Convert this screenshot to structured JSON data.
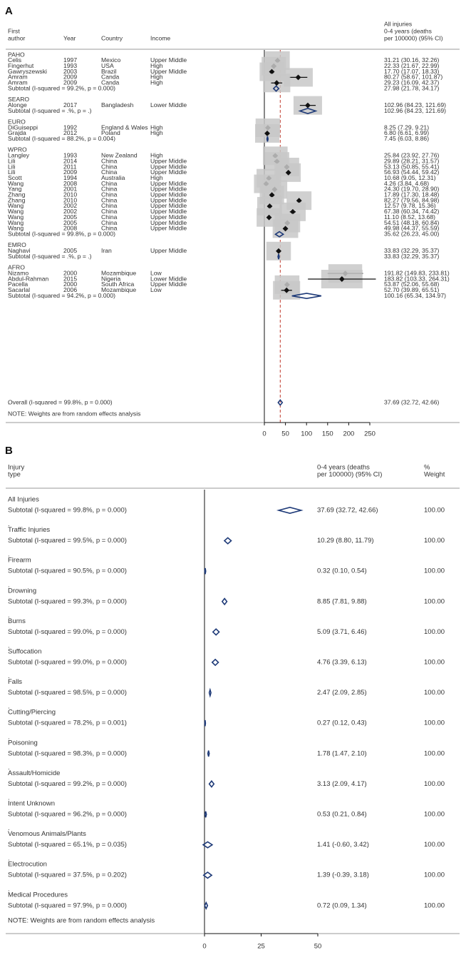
{
  "chart_data": [
    {
      "type": "forest",
      "panel_label": "A",
      "headers": {
        "author": "First\nauthor",
        "year": "Year",
        "country": "Country",
        "income": "Income",
        "estimate": "All injuries\n0-4 years (deaths\nper 100000) (95% CI)"
      },
      "x_ticks": [
        0,
        50,
        100,
        150,
        200,
        250
      ],
      "xlim": [
        0,
        250
      ],
      "null_line": 0,
      "overall_line": 37.69,
      "groups": [
        {
          "name": "PAHO",
          "studies": [
            {
              "author": "Celis",
              "year": "1997",
              "country": "Mexico",
              "income": "Upper Middle",
              "est": 31.21,
              "lo": 30.16,
              "hi": 32.26,
              "label": "31.21 (30.16, 32.26)"
            },
            {
              "author": "Fingerhut",
              "year": "1993",
              "country": "USA",
              "income": "High",
              "est": 22.33,
              "lo": 21.67,
              "hi": 22.99,
              "label": "22.33 (21.67, 22.99)"
            },
            {
              "author": "Gawryszewski",
              "year": "2003",
              "country": "Brazil",
              "income": "Upper Middle",
              "est": 17.7,
              "lo": 17.07,
              "hi": 18.33,
              "label": "17.70 (17.07, 18.33)"
            },
            {
              "author": "Amram",
              "year": "2009",
              "country": "Canda",
              "income": "High",
              "est": 80.27,
              "lo": 58.67,
              "hi": 101.87,
              "label": "80.27 (58.67, 101.87)"
            },
            {
              "author": "Amram",
              "year": "2009",
              "country": "Canda",
              "income": "High",
              "est": 29.23,
              "lo": 16.09,
              "hi": 42.37,
              "label": "29.23 (16.09, 42.37)"
            }
          ],
          "subtotal": {
            "text": "Subtotal  (I-squared = 99.2%, p = 0.000)",
            "est": 27.98,
            "lo": 21.78,
            "hi": 34.17,
            "label": "27.98 (21.78, 34.17)"
          }
        },
        {
          "name": "SEARO",
          "studies": [
            {
              "author": "Alonge",
              "year": "2017",
              "country": "Bangladesh",
              "income": "Lower Middle",
              "est": 102.96,
              "lo": 84.23,
              "hi": 121.69,
              "label": "102.96 (84.23, 121.69)"
            }
          ],
          "subtotal": {
            "text": "Subtotal  (I-squared = .%, p = .)",
            "est": 102.96,
            "lo": 84.23,
            "hi": 121.69,
            "label": "102.96 (84.23, 121.69)"
          }
        },
        {
          "name": "EURO",
          "studies": [
            {
              "author": "DiGuiseppi",
              "year": "1992",
              "country": "England & Wales",
              "income": "High",
              "est": 8.25,
              "lo": 7.29,
              "hi": 9.21,
              "label": "8.25 (7.29, 9.21)"
            },
            {
              "author": "Grajda",
              "year": "2012",
              "country": "Poland",
              "income": "High",
              "est": 6.8,
              "lo": 6.61,
              "hi": 6.99,
              "label": "6.80 (6.61, 6.99)"
            }
          ],
          "subtotal": {
            "text": "Subtotal  (I-squared = 88.2%, p = 0.004)",
            "est": 7.45,
            "lo": 6.03,
            "hi": 8.86,
            "label": "7.45 (6.03, 8.86)"
          }
        },
        {
          "name": "WPRO",
          "studies": [
            {
              "author": "Langley",
              "year": "1993",
              "country": "New Zealand",
              "income": "High",
              "est": 25.84,
              "lo": 23.92,
              "hi": 27.76,
              "label": "25.84 (23.92, 27.76)"
            },
            {
              "author": "Lili",
              "year": "2014",
              "country": "China",
              "income": "Upper Middle",
              "est": 29.89,
              "lo": 28.21,
              "hi": 31.57,
              "label": "29.89 (28.21, 31.57)"
            },
            {
              "author": "Lili",
              "year": "2011",
              "country": "China",
              "income": "Upper Middle",
              "est": 53.13,
              "lo": 50.85,
              "hi": 55.41,
              "label": "53.13 (50.85, 55.41)"
            },
            {
              "author": "Lili",
              "year": "2009",
              "country": "China",
              "income": "Upper Middle",
              "est": 56.93,
              "lo": 54.44,
              "hi": 59.42,
              "label": "56.93 (54.44, 59.42)"
            },
            {
              "author": "Scott",
              "year": "1994",
              "country": "Australia",
              "income": "High",
              "est": 10.68,
              "lo": 9.05,
              "hi": 12.31,
              "label": "10.68 (9.05, 12.31)"
            },
            {
              "author": "Wang",
              "year": "2008",
              "country": "China",
              "income": "Upper Middle",
              "est": 4.26,
              "lo": 3.84,
              "hi": 4.68,
              "label": "4.26 (3.84, 4.68)"
            },
            {
              "author": "Yang",
              "year": "2001",
              "country": "China",
              "income": "Upper Middle",
              "est": 24.3,
              "lo": 19.7,
              "hi": 28.9,
              "label": "24.30 (19.70, 28.90)"
            },
            {
              "author": "Zhang",
              "year": "2010",
              "country": "China",
              "income": "Upper Middle",
              "est": 17.89,
              "lo": 17.3,
              "hi": 18.48,
              "label": "17.89 (17.30, 18.48)"
            },
            {
              "author": "Zhang",
              "year": "2010",
              "country": "China",
              "income": "Upper Middle",
              "est": 82.27,
              "lo": 79.56,
              "hi": 84.98,
              "label": "82.27 (79.56, 84.98)"
            },
            {
              "author": "Wang",
              "year": "2002",
              "country": "China",
              "income": "Upper Middle",
              "est": 12.57,
              "lo": 9.78,
              "hi": 15.36,
              "label": "12.57 (9.78, 15.36)"
            },
            {
              "author": "Wang",
              "year": "2002",
              "country": "China",
              "income": "Upper Middle",
              "est": 67.38,
              "lo": 60.34,
              "hi": 74.42,
              "label": "67.38 (60.34, 74.42)"
            },
            {
              "author": "Wang",
              "year": "2005",
              "country": "China",
              "income": "Upper Middle",
              "est": 11.1,
              "lo": 8.52,
              "hi": 13.68,
              "label": "11.10 (8.52, 13.68)"
            },
            {
              "author": "Wang",
              "year": "2005",
              "country": "China",
              "income": "Upper Middle",
              "est": 54.51,
              "lo": 48.18,
              "hi": 60.84,
              "label": "54.51 (48.18, 60.84)"
            },
            {
              "author": "Wang",
              "year": "2008",
              "country": "China",
              "income": "Upper Middle",
              "est": 49.98,
              "lo": 44.37,
              "hi": 55.59,
              "label": "49.98 (44.37, 55.59)"
            }
          ],
          "subtotal": {
            "text": "Subtotal  (I-squared = 99.8%, p = 0.000)",
            "est": 35.62,
            "lo": 26.23,
            "hi": 45.0,
            "label": "35.62 (26.23, 45.00)"
          }
        },
        {
          "name": "EMRO",
          "studies": [
            {
              "author": "Naghavi",
              "year": "2005",
              "country": "Iran",
              "income": "Upper Middle",
              "est": 33.83,
              "lo": 32.29,
              "hi": 35.37,
              "label": "33.83 (32.29, 35.37)"
            }
          ],
          "subtotal": {
            "text": "Subtotal  (I-squared = .%, p = .)",
            "est": 33.83,
            "lo": 32.29,
            "hi": 35.37,
            "label": "33.83 (32.29, 35.37)"
          }
        },
        {
          "name": "AFRO",
          "studies": [
            {
              "author": "Nizamo",
              "year": "2000",
              "country": "Mozambique",
              "income": "Low",
              "est": 191.82,
              "lo": 149.83,
              "hi": 233.81,
              "label": "191.82 (149.83, 233.81)"
            },
            {
              "author": "Abdul-Rahman",
              "year": "2015",
              "country": "Nigeria",
              "income": "Lower Middle",
              "est": 183.82,
              "lo": 103.33,
              "hi": 264.31,
              "label": "183.82 (103.33, 264.31)"
            },
            {
              "author": "Pacella",
              "year": "2000",
              "country": "South Africa",
              "income": "Upper Middle",
              "est": 53.87,
              "lo": 52.06,
              "hi": 55.68,
              "label": "53.87 (52.06, 55.68)"
            },
            {
              "author": "Sacarlal",
              "year": "2006",
              "country": "Mozambique",
              "income": "Low",
              "est": 52.7,
              "lo": 39.89,
              "hi": 65.51,
              "label": "52.70 (39.89, 65.51)"
            }
          ],
          "subtotal": {
            "text": "Subtotal  (I-squared = 94.2%, p = 0.000)",
            "est": 100.16,
            "lo": 65.34,
            "hi": 134.97,
            "label": "100.16 (65.34, 134.97)"
          }
        }
      ],
      "overall": {
        "text": "Overall  (I-squared = 99.8%, p = 0.000)",
        "est": 37.69,
        "lo": 32.72,
        "hi": 42.66,
        "label": "37.69 (32.72, 42.66)"
      },
      "note": "NOTE: Weights are from random effects analysis"
    },
    {
      "type": "forest",
      "panel_label": "B",
      "headers": {
        "type": "Injury\ntype",
        "estimate": "0-4 years (deaths\nper 100000) (95% CI)",
        "weight": "%\nWeight"
      },
      "x_ticks": [
        0,
        25,
        50
      ],
      "xlim": [
        0,
        50
      ],
      "null_line": 0,
      "rows": [
        {
          "type": "All Injuries",
          "subtotal": "Subtotal  (I-squared = 99.8%, p = 0.000)",
          "est": 37.69,
          "lo": 32.72,
          "hi": 42.66,
          "label": "37.69 (32.72, 42.66)",
          "weight": "100.00"
        },
        {
          "type": "Traffic Injuries",
          "subtotal": "Subtotal  (I-squared = 99.5%, p = 0.000)",
          "est": 10.29,
          "lo": 8.8,
          "hi": 11.79,
          "label": "10.29 (8.80, 11.79)",
          "weight": "100.00"
        },
        {
          "type": "Firearm",
          "subtotal": "Subtotal  (I-squared = 90.5%, p = 0.000)",
          "est": 0.32,
          "lo": 0.1,
          "hi": 0.54,
          "label": "0.32 (0.10, 0.54)",
          "weight": "100.00"
        },
        {
          "type": "Drowning",
          "subtotal": "Subtotal  (I-squared = 99.3%, p = 0.000)",
          "est": 8.85,
          "lo": 7.81,
          "hi": 9.88,
          "label": "8.85 (7.81, 9.88)",
          "weight": "100.00"
        },
        {
          "type": "Burns",
          "subtotal": "Subtotal  (I-squared = 99.0%, p = 0.000)",
          "est": 5.09,
          "lo": 3.71,
          "hi": 6.46,
          "label": "5.09 (3.71, 6.46)",
          "weight": "100.00"
        },
        {
          "type": "Suffocation",
          "subtotal": "Subtotal  (I-squared = 99.0%, p = 0.000)",
          "est": 4.76,
          "lo": 3.39,
          "hi": 6.13,
          "label": "4.76 (3.39, 6.13)",
          "weight": "100.00"
        },
        {
          "type": "Falls",
          "subtotal": "Subtotal  (I-squared = 98.5%, p = 0.000)",
          "est": 2.47,
          "lo": 2.09,
          "hi": 2.85,
          "label": "2.47 (2.09, 2.85)",
          "weight": "100.00"
        },
        {
          "type": "Cutting/Piercing",
          "subtotal": "Subtotal  (I-squared = 78.2%, p = 0.001)",
          "est": 0.27,
          "lo": 0.12,
          "hi": 0.43,
          "label": "0.27 (0.12, 0.43)",
          "weight": "100.00"
        },
        {
          "type": "Poisoning",
          "subtotal": "Subtotal  (I-squared = 98.3%, p = 0.000)",
          "est": 1.78,
          "lo": 1.47,
          "hi": 2.1,
          "label": "1.78 (1.47, 2.10)",
          "weight": "100.00"
        },
        {
          "type": "Assault/Homicide",
          "subtotal": "Subtotal  (I-squared = 99.2%, p = 0.000)",
          "est": 3.13,
          "lo": 2.09,
          "hi": 4.17,
          "label": "3.13 (2.09, 4.17)",
          "weight": "100.00"
        },
        {
          "type": "Intent Unknown",
          "subtotal": "Subtotal  (I-squared = 96.2%, p = 0.000)",
          "est": 0.53,
          "lo": 0.21,
          "hi": 0.84,
          "label": "0.53 (0.21, 0.84)",
          "weight": "100.00"
        },
        {
          "type": "Venomous Animals/Plants",
          "subtotal": "Subtotal  (I-squared = 65.1%, p = 0.035)",
          "est": 1.41,
          "lo": -0.6,
          "hi": 3.42,
          "label": "1.41 (-0.60, 3.42)",
          "weight": "100.00"
        },
        {
          "type": "Electrocution",
          "subtotal": "Subtotal  (I-squared = 37.5%, p = 0.202)",
          "est": 1.39,
          "lo": -0.39,
          "hi": 3.18,
          "label": "1.39 (-0.39, 3.18)",
          "weight": "100.00"
        },
        {
          "type": "Medical Procedures",
          "subtotal": "Subtotal  (I-squared = 97.9%, p = 0.000)",
          "est": 0.72,
          "lo": 0.09,
          "hi": 1.34,
          "label": "0.72 (0.09, 1.34)",
          "weight": "100.00"
        }
      ],
      "note": "NOTE: Weights are from random effects analysis"
    }
  ],
  "colors": {
    "marker": "#111111",
    "diamond": "#1e3a78",
    "weight_box": "#c8c8c8",
    "reference_line": "#c0392b",
    "rule": "#999999"
  }
}
